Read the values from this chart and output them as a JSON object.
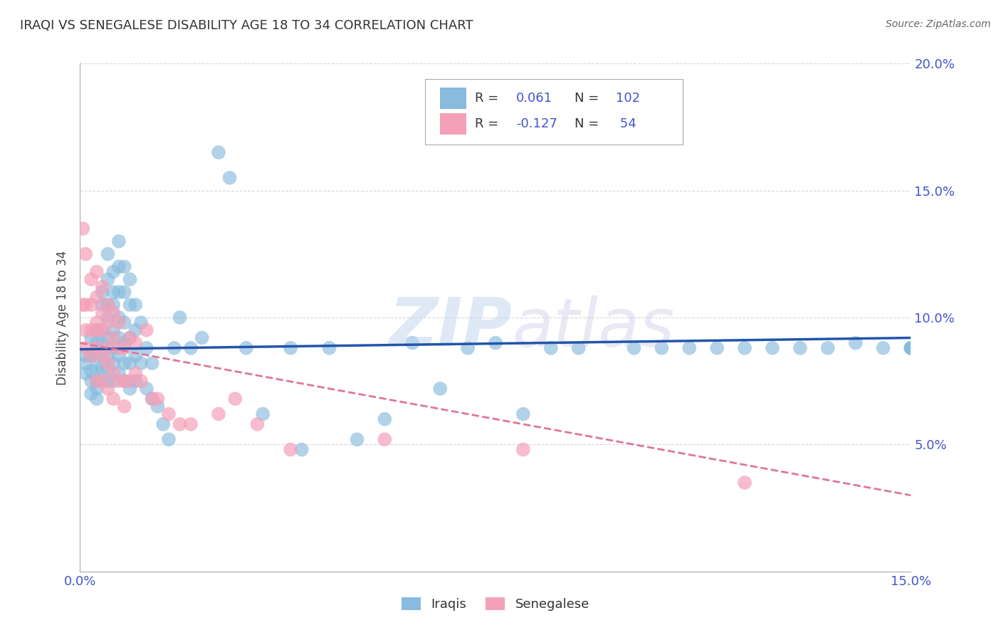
{
  "title": "IRAQI VS SENEGALESE DISABILITY AGE 18 TO 34 CORRELATION CHART",
  "source": "Source: ZipAtlas.com",
  "ylabel": "Disability Age 18 to 34",
  "xlim": [
    0.0,
    0.15
  ],
  "ylim": [
    0.0,
    0.2
  ],
  "iraqis_color": "#88bbdd",
  "senegalese_color": "#f4a0b8",
  "iraqis_line_color": "#2255aa",
  "senegalese_line_color": "#dd7799",
  "watermark_zip": "ZIP",
  "watermark_atlas": "atlas",
  "background_color": "#ffffff",
  "grid_color": "#cccccc",
  "axis_label_color": "#4455cc",
  "title_color": "#333333",
  "iraqis_x": [
    0.001,
    0.001,
    0.001,
    0.002,
    0.002,
    0.002,
    0.002,
    0.002,
    0.003,
    0.003,
    0.003,
    0.003,
    0.003,
    0.003,
    0.003,
    0.004,
    0.004,
    0.004,
    0.004,
    0.004,
    0.004,
    0.004,
    0.005,
    0.005,
    0.005,
    0.005,
    0.005,
    0.005,
    0.005,
    0.005,
    0.006,
    0.006,
    0.006,
    0.006,
    0.006,
    0.006,
    0.006,
    0.007,
    0.007,
    0.007,
    0.007,
    0.007,
    0.007,
    0.007,
    0.008,
    0.008,
    0.008,
    0.008,
    0.008,
    0.008,
    0.009,
    0.009,
    0.009,
    0.009,
    0.009,
    0.01,
    0.01,
    0.01,
    0.01,
    0.011,
    0.011,
    0.012,
    0.012,
    0.013,
    0.013,
    0.014,
    0.015,
    0.016,
    0.017,
    0.018,
    0.02,
    0.022,
    0.025,
    0.027,
    0.03,
    0.033,
    0.038,
    0.04,
    0.045,
    0.05,
    0.055,
    0.06,
    0.065,
    0.07,
    0.075,
    0.08,
    0.085,
    0.09,
    0.1,
    0.105,
    0.11,
    0.115,
    0.12,
    0.125,
    0.13,
    0.135,
    0.14,
    0.145,
    0.15,
    0.15,
    0.15,
    0.15
  ],
  "iraqis_y": [
    0.085,
    0.082,
    0.078,
    0.092,
    0.085,
    0.079,
    0.075,
    0.07,
    0.095,
    0.09,
    0.085,
    0.08,
    0.075,
    0.072,
    0.068,
    0.11,
    0.105,
    0.095,
    0.09,
    0.085,
    0.08,
    0.075,
    0.125,
    0.115,
    0.105,
    0.1,
    0.092,
    0.085,
    0.08,
    0.075,
    0.118,
    0.11,
    0.105,
    0.095,
    0.088,
    0.082,
    0.075,
    0.13,
    0.12,
    0.11,
    0.1,
    0.092,
    0.085,
    0.078,
    0.12,
    0.11,
    0.098,
    0.09,
    0.082,
    0.075,
    0.115,
    0.105,
    0.092,
    0.082,
    0.072,
    0.105,
    0.095,
    0.085,
    0.075,
    0.098,
    0.082,
    0.088,
    0.072,
    0.082,
    0.068,
    0.065,
    0.058,
    0.052,
    0.088,
    0.1,
    0.088,
    0.092,
    0.165,
    0.155,
    0.088,
    0.062,
    0.088,
    0.048,
    0.088,
    0.052,
    0.06,
    0.09,
    0.072,
    0.088,
    0.09,
    0.062,
    0.088,
    0.088,
    0.088,
    0.088,
    0.088,
    0.088,
    0.088,
    0.088,
    0.088,
    0.088,
    0.09,
    0.088,
    0.088,
    0.088,
    0.088,
    0.088
  ],
  "senegalese_x": [
    0.0005,
    0.0005,
    0.001,
    0.001,
    0.001,
    0.001,
    0.002,
    0.002,
    0.002,
    0.002,
    0.003,
    0.003,
    0.003,
    0.003,
    0.003,
    0.003,
    0.004,
    0.004,
    0.004,
    0.004,
    0.004,
    0.005,
    0.005,
    0.005,
    0.005,
    0.005,
    0.006,
    0.006,
    0.006,
    0.006,
    0.007,
    0.007,
    0.007,
    0.008,
    0.008,
    0.008,
    0.009,
    0.009,
    0.01,
    0.01,
    0.011,
    0.012,
    0.013,
    0.014,
    0.016,
    0.018,
    0.02,
    0.025,
    0.028,
    0.032,
    0.038,
    0.055,
    0.08,
    0.12
  ],
  "senegalese_y": [
    0.135,
    0.105,
    0.125,
    0.105,
    0.095,
    0.088,
    0.115,
    0.105,
    0.095,
    0.085,
    0.118,
    0.108,
    0.098,
    0.095,
    0.088,
    0.075,
    0.112,
    0.102,
    0.095,
    0.085,
    0.075,
    0.105,
    0.098,
    0.088,
    0.082,
    0.072,
    0.102,
    0.092,
    0.078,
    0.068,
    0.098,
    0.088,
    0.075,
    0.088,
    0.075,
    0.065,
    0.092,
    0.075,
    0.09,
    0.078,
    0.075,
    0.095,
    0.068,
    0.068,
    0.062,
    0.058,
    0.058,
    0.062,
    0.068,
    0.058,
    0.048,
    0.052,
    0.048,
    0.035
  ]
}
